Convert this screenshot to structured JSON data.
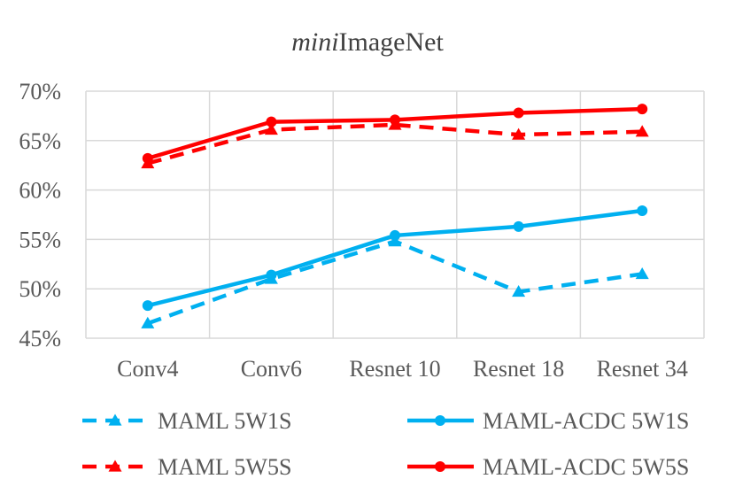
{
  "chart_data": {
    "type": "line",
    "title_italic": "mini",
    "title_rest": "ImageNet",
    "categories": [
      "Conv4",
      "Conv6",
      "Resnet 10",
      "Resnet 18",
      "Resnet 34"
    ],
    "y_ticks": [
      "45%",
      "50%",
      "55%",
      "60%",
      "65%",
      "70%"
    ],
    "ylim": [
      45,
      70
    ],
    "y_unit": "%",
    "grid": true,
    "legend_position": "bottom",
    "series": [
      {
        "name": "MAML 5W1S",
        "values": [
          46.5,
          51.0,
          54.8,
          49.7,
          51.5
        ],
        "color": "#00b0f0",
        "dash": true,
        "marker": "triangle"
      },
      {
        "name": "MAML-ACDC 5W1S",
        "values": [
          48.3,
          51.4,
          55.4,
          56.3,
          57.9
        ],
        "color": "#00b0f0",
        "dash": false,
        "marker": "circle"
      },
      {
        "name": "MAML 5W5S",
        "values": [
          62.7,
          66.1,
          66.6,
          65.6,
          65.9
        ],
        "color": "#ff0000",
        "dash": true,
        "marker": "triangle"
      },
      {
        "name": "MAML-ACDC 5W5S",
        "values": [
          63.2,
          66.9,
          67.1,
          67.8,
          68.2
        ],
        "color": "#ff0000",
        "dash": false,
        "marker": "circle"
      }
    ]
  }
}
